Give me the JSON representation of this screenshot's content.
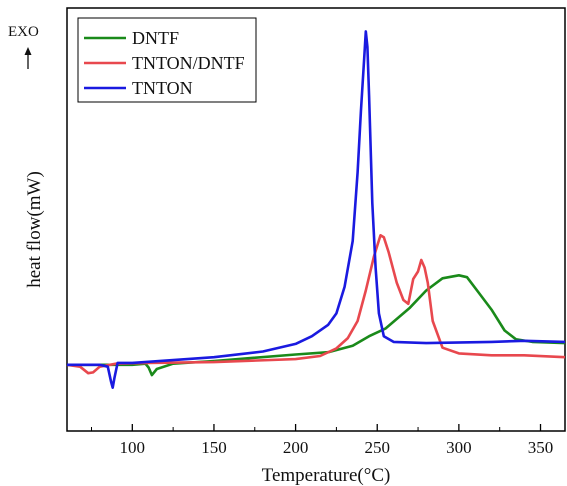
{
  "exo_label": "EXO",
  "chart_data": {
    "type": "line",
    "xlabel": "Temperature(°C)",
    "ylabel": "heat flow(mW)",
    "xlim": [
      60,
      365
    ],
    "ylim": [
      0,
      1.0
    ],
    "x_ticks": [
      100,
      150,
      200,
      250,
      300,
      350
    ],
    "x_tick_labels": [
      "100",
      "150",
      "200",
      "250",
      "300",
      "350"
    ],
    "legend_position": "top-left",
    "series": [
      {
        "name": "DNTF",
        "color": "#1a8a1a",
        "points": [
          [
            60,
            0.095
          ],
          [
            80,
            0.095
          ],
          [
            100,
            0.095
          ],
          [
            108,
            0.098
          ],
          [
            110,
            0.088
          ],
          [
            112,
            0.068
          ],
          [
            115,
            0.084
          ],
          [
            125,
            0.098
          ],
          [
            150,
            0.105
          ],
          [
            200,
            0.122
          ],
          [
            220,
            0.128
          ],
          [
            235,
            0.145
          ],
          [
            245,
            0.17
          ],
          [
            255,
            0.19
          ],
          [
            270,
            0.245
          ],
          [
            280,
            0.29
          ],
          [
            290,
            0.322
          ],
          [
            300,
            0.33
          ],
          [
            305,
            0.325
          ],
          [
            312,
            0.285
          ],
          [
            320,
            0.24
          ],
          [
            328,
            0.185
          ],
          [
            335,
            0.162
          ],
          [
            345,
            0.155
          ],
          [
            365,
            0.152
          ]
        ]
      },
      {
        "name": "TNTON/DNTF",
        "color": "#e8484e",
        "points": [
          [
            60,
            0.095
          ],
          [
            68,
            0.09
          ],
          [
            73,
            0.073
          ],
          [
            76,
            0.075
          ],
          [
            80,
            0.09
          ],
          [
            90,
            0.098
          ],
          [
            110,
            0.1
          ],
          [
            150,
            0.102
          ],
          [
            200,
            0.11
          ],
          [
            215,
            0.118
          ],
          [
            225,
            0.138
          ],
          [
            232,
            0.165
          ],
          [
            238,
            0.21
          ],
          [
            243,
            0.29
          ],
          [
            248,
            0.38
          ],
          [
            252,
            0.435
          ],
          [
            254,
            0.43
          ],
          [
            257,
            0.39
          ],
          [
            262,
            0.31
          ],
          [
            266,
            0.265
          ],
          [
            269,
            0.255
          ],
          [
            272,
            0.32
          ],
          [
            275,
            0.34
          ],
          [
            277,
            0.37
          ],
          [
            279,
            0.35
          ],
          [
            281,
            0.31
          ],
          [
            284,
            0.21
          ],
          [
            290,
            0.14
          ],
          [
            300,
            0.125
          ],
          [
            320,
            0.12
          ],
          [
            340,
            0.12
          ],
          [
            365,
            0.115
          ]
        ]
      },
      {
        "name": "TNTON",
        "color": "#1a1ae0",
        "points": [
          [
            60,
            0.095
          ],
          [
            80,
            0.095
          ],
          [
            85,
            0.09
          ],
          [
            87,
            0.05
          ],
          [
            88,
            0.035
          ],
          [
            89,
            0.06
          ],
          [
            91,
            0.1
          ],
          [
            100,
            0.1
          ],
          [
            150,
            0.115
          ],
          [
            180,
            0.13
          ],
          [
            200,
            0.15
          ],
          [
            210,
            0.17
          ],
          [
            220,
            0.2
          ],
          [
            225,
            0.23
          ],
          [
            230,
            0.3
          ],
          [
            235,
            0.42
          ],
          [
            238,
            0.6
          ],
          [
            240,
            0.76
          ],
          [
            242,
            0.9
          ],
          [
            243,
            0.97
          ],
          [
            244,
            0.93
          ],
          [
            245,
            0.8
          ],
          [
            247,
            0.52
          ],
          [
            249,
            0.35
          ],
          [
            251,
            0.23
          ],
          [
            254,
            0.17
          ],
          [
            260,
            0.155
          ],
          [
            280,
            0.152
          ],
          [
            320,
            0.155
          ],
          [
            340,
            0.158
          ],
          [
            365,
            0.155
          ]
        ]
      }
    ]
  }
}
